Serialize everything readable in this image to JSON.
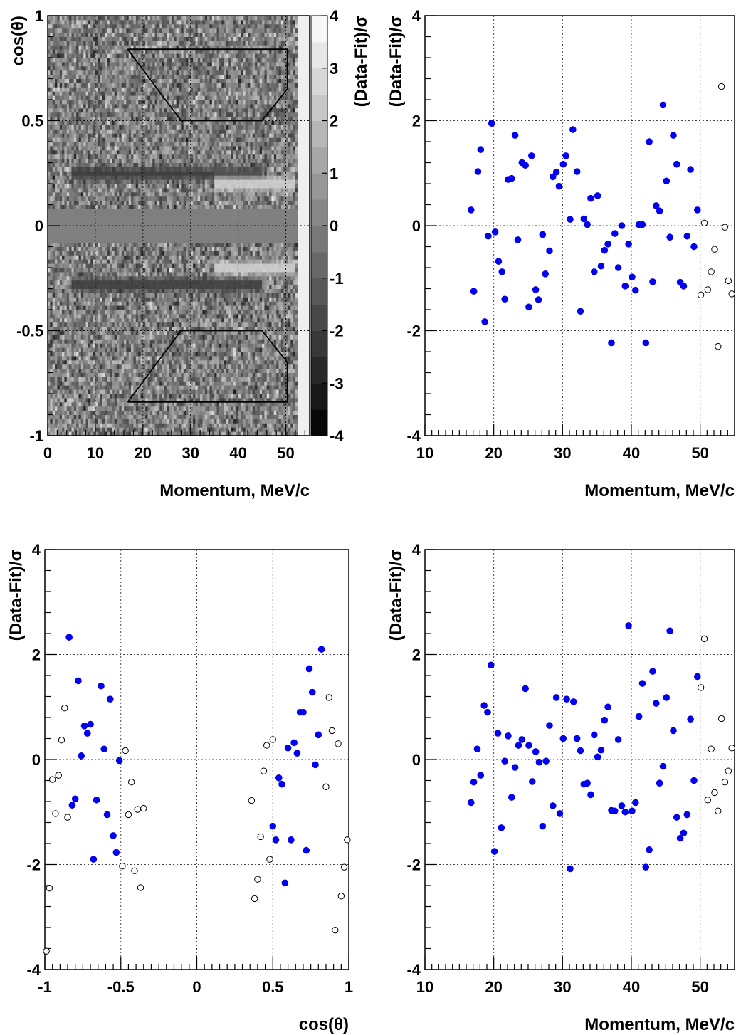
{
  "chart_data": [
    {
      "type": "heatmap",
      "xlabel": "Momentum, MeV/c",
      "ylabel": "cos(θ)",
      "colorbar_label": "(Data-Fit)/σ",
      "xlim": [
        0,
        55
      ],
      "ylim": [
        -1,
        1
      ],
      "zlim": [
        -4,
        4
      ],
      "x_ticks": [
        "0",
        "10",
        "20",
        "30",
        "40",
        "50"
      ],
      "y_ticks": [
        "-1",
        "-0.5",
        "0",
        "0.5",
        "1"
      ],
      "colorbar_ticks": [
        "-4",
        "-3",
        "-2",
        "-1",
        "0",
        "1",
        "2",
        "3",
        "4"
      ],
      "grid": true,
      "colormap": "grayscale",
      "features": [
        {
          "description": "dark negative-residual band",
          "x_range": [
            5,
            45
          ],
          "cos_center": 0.25,
          "value": -2
        },
        {
          "description": "bright positive-residual band",
          "x_range": [
            35,
            52
          ],
          "cos_center": 0.2,
          "value": 2.5
        },
        {
          "description": "dark negative-residual band",
          "x_range": [
            5,
            45
          ],
          "cos_center": -0.28,
          "value": -2
        },
        {
          "description": "bright positive-residual band",
          "x_range": [
            35,
            52
          ],
          "cos_center": -0.2,
          "value": 2.5
        },
        {
          "description": "empty central strip",
          "cos_range": [
            -0.08,
            0.08
          ],
          "value": 0
        }
      ],
      "regions": [
        [
          [
            16.8,
            0.84
          ],
          [
            50.3,
            0.84
          ],
          [
            50.3,
            0.65
          ],
          [
            45,
            0.5
          ],
          [
            28,
            0.5
          ],
          [
            16.8,
            0.84
          ]
        ],
        [
          [
            16.8,
            -0.84
          ],
          [
            50.3,
            -0.84
          ],
          [
            50.3,
            -0.65
          ],
          [
            45,
            -0.5
          ],
          [
            28,
            -0.5
          ],
          [
            16.8,
            -0.84
          ]
        ]
      ]
    },
    {
      "type": "scatter",
      "xlabel": "Momentum, MeV/c",
      "ylabel": "(Data-Fit)/σ",
      "xlim": [
        10,
        55
      ],
      "ylim": [
        -4,
        4
      ],
      "x_ticks": [
        "10",
        "20",
        "30",
        "40",
        "50"
      ],
      "y_ticks": [
        "-4",
        "-2",
        "0",
        "2",
        "4"
      ],
      "grid": true,
      "series": [
        {
          "marker": "filled",
          "color": "#0000ee",
          "points": [
            [
              16.7,
              0.3
            ],
            [
              17.1,
              -1.25
            ],
            [
              17.7,
              1.03
            ],
            [
              18.1,
              1.45
            ],
            [
              18.7,
              -1.83
            ],
            [
              19.2,
              -0.2
            ],
            [
              19.7,
              1.95
            ],
            [
              20.2,
              -0.12
            ],
            [
              20.7,
              -0.68
            ],
            [
              21.2,
              -0.88
            ],
            [
              21.6,
              -1.4
            ],
            [
              22.1,
              0.88
            ],
            [
              22.6,
              0.9
            ],
            [
              23.1,
              1.72
            ],
            [
              23.5,
              -0.27
            ],
            [
              24.1,
              1.2
            ],
            [
              24.6,
              1.15
            ],
            [
              25.1,
              -1.55
            ],
            [
              25.5,
              1.33
            ],
            [
              26.1,
              -1.22
            ],
            [
              26.5,
              -1.41
            ],
            [
              27.1,
              -0.17
            ],
            [
              27.5,
              -0.92
            ],
            [
              28.1,
              -0.48
            ],
            [
              28.6,
              0.93
            ],
            [
              29.1,
              1.02
            ],
            [
              29.5,
              0.75
            ],
            [
              30.1,
              1.17
            ],
            [
              30.5,
              1.33
            ],
            [
              31.1,
              0.12
            ],
            [
              31.5,
              1.83
            ],
            [
              32.1,
              1.03
            ],
            [
              32.6,
              -1.63
            ],
            [
              33.1,
              0.13
            ],
            [
              33.6,
              0.02
            ],
            [
              34.1,
              0.52
            ],
            [
              34.6,
              -0.88
            ],
            [
              35.1,
              0.57
            ],
            [
              35.6,
              -0.77
            ],
            [
              36.1,
              -0.47
            ],
            [
              36.6,
              -0.35
            ],
            [
              37.1,
              -2.23
            ],
            [
              37.6,
              -0.15
            ],
            [
              38.1,
              -0.8
            ],
            [
              38.6,
              0.0
            ],
            [
              39.1,
              -1.15
            ],
            [
              39.6,
              -0.35
            ],
            [
              40.1,
              -0.98
            ],
            [
              40.6,
              -1.23
            ],
            [
              41.1,
              0.02
            ],
            [
              41.6,
              0.02
            ],
            [
              42.1,
              -2.23
            ],
            [
              42.6,
              1.6
            ],
            [
              43.1,
              -1.07
            ],
            [
              43.6,
              0.38
            ],
            [
              44.1,
              0.28
            ],
            [
              44.6,
              2.3
            ],
            [
              45.1,
              0.85
            ],
            [
              45.6,
              -0.22
            ],
            [
              46.1,
              1.72
            ],
            [
              46.6,
              1.17
            ],
            [
              47.1,
              -1.08
            ],
            [
              47.6,
              -1.15
            ],
            [
              48.1,
              -0.2
            ],
            [
              48.6,
              1.07
            ],
            [
              49.1,
              -0.4
            ],
            [
              49.6,
              0.3
            ]
          ]
        },
        {
          "marker": "open",
          "color": "#000000",
          "points": [
            [
              50.1,
              -1.32
            ],
            [
              50.6,
              0.05
            ],
            [
              51.1,
              -1.22
            ],
            [
              51.6,
              -0.88
            ],
            [
              52.1,
              -0.45
            ],
            [
              52.6,
              -2.3
            ],
            [
              53.1,
              2.65
            ],
            [
              53.6,
              -0.03
            ],
            [
              54.1,
              -1.05
            ],
            [
              54.6,
              -1.3
            ]
          ]
        }
      ]
    },
    {
      "type": "scatter",
      "xlabel": "cos(θ)",
      "ylabel": "(Data-Fit)/σ",
      "xlim": [
        -1,
        1
      ],
      "ylim": [
        -4,
        4
      ],
      "x_ticks": [
        "-1",
        "-0.5",
        "0",
        "0.5",
        "1"
      ],
      "y_ticks": [
        "-4",
        "-2",
        "0",
        "2",
        "4"
      ],
      "grid": true,
      "series": [
        {
          "marker": "filled",
          "color": "#0000ee",
          "points": [
            [
              -0.84,
              2.33
            ],
            [
              -0.82,
              -0.87
            ],
            [
              -0.8,
              -0.75
            ],
            [
              -0.78,
              1.5
            ],
            [
              -0.76,
              0.07
            ],
            [
              -0.74,
              0.64
            ],
            [
              -0.72,
              0.5
            ],
            [
              -0.7,
              0.67
            ],
            [
              -0.68,
              -1.9
            ],
            [
              -0.66,
              -0.77
            ],
            [
              -0.63,
              1.4
            ],
            [
              -0.61,
              0.2
            ],
            [
              -0.59,
              -1.05
            ],
            [
              -0.57,
              1.15
            ],
            [
              -0.55,
              -1.45
            ],
            [
              -0.53,
              -1.77
            ],
            [
              -0.51,
              -0.02
            ],
            [
              0.5,
              -1.27
            ],
            [
              0.52,
              -1.53
            ],
            [
              0.54,
              -0.35
            ],
            [
              0.56,
              -0.47
            ],
            [
              0.58,
              -2.35
            ],
            [
              0.6,
              0.22
            ],
            [
              0.62,
              -1.53
            ],
            [
              0.64,
              0.32
            ],
            [
              0.66,
              0.12
            ],
            [
              0.68,
              0.9
            ],
            [
              0.7,
              0.9
            ],
            [
              0.72,
              -1.73
            ],
            [
              0.74,
              1.73
            ],
            [
              0.76,
              1.28
            ],
            [
              0.78,
              -0.1
            ],
            [
              0.8,
              0.47
            ],
            [
              0.82,
              2.1
            ]
          ]
        },
        {
          "marker": "open",
          "color": "#000000",
          "points": [
            [
              -0.99,
              -3.65
            ],
            [
              -0.97,
              -2.45
            ],
            [
              -0.95,
              -0.38
            ],
            [
              -0.93,
              -1.03
            ],
            [
              -0.91,
              -0.3
            ],
            [
              -0.89,
              0.37
            ],
            [
              -0.87,
              0.98
            ],
            [
              -0.85,
              -1.1
            ],
            [
              -0.49,
              -2.03
            ],
            [
              -0.47,
              0.17
            ],
            [
              -0.45,
              -1.05
            ],
            [
              -0.43,
              -0.43
            ],
            [
              -0.41,
              -2.12
            ],
            [
              -0.39,
              -0.95
            ],
            [
              -0.37,
              -2.44
            ],
            [
              -0.35,
              -0.93
            ],
            [
              0.36,
              -0.78
            ],
            [
              0.38,
              -2.65
            ],
            [
              0.4,
              -2.28
            ],
            [
              0.42,
              -1.47
            ],
            [
              0.44,
              -0.22
            ],
            [
              0.46,
              0.27
            ],
            [
              0.48,
              -1.9
            ],
            [
              0.5,
              0.38
            ],
            [
              0.85,
              -0.52
            ],
            [
              0.87,
              1.18
            ],
            [
              0.89,
              0.55
            ],
            [
              0.91,
              -3.25
            ],
            [
              0.93,
              0.3
            ],
            [
              0.95,
              -2.6
            ],
            [
              0.97,
              -2.05
            ],
            [
              0.99,
              -1.53
            ]
          ]
        }
      ]
    },
    {
      "type": "scatter",
      "xlabel": "Momentum, MeV/c",
      "ylabel": "(Data-Fit)/σ",
      "xlim": [
        10,
        55
      ],
      "ylim": [
        -4,
        4
      ],
      "x_ticks": [
        "10",
        "20",
        "30",
        "40",
        "50"
      ],
      "y_ticks": [
        "-4",
        "-2",
        "0",
        "2",
        "4"
      ],
      "grid": true,
      "series": [
        {
          "marker": "filled",
          "color": "#0000ee",
          "points": [
            [
              16.7,
              -0.82
            ],
            [
              17.1,
              -0.43
            ],
            [
              17.6,
              0.2
            ],
            [
              18.1,
              -0.3
            ],
            [
              18.6,
              1.03
            ],
            [
              19.1,
              0.9
            ],
            [
              19.6,
              1.8
            ],
            [
              20.1,
              -1.75
            ],
            [
              20.6,
              0.5
            ],
            [
              21.1,
              -1.3
            ],
            [
              21.6,
              -0.03
            ],
            [
              22.1,
              0.45
            ],
            [
              22.6,
              -0.72
            ],
            [
              23.1,
              -0.15
            ],
            [
              23.6,
              0.27
            ],
            [
              24.1,
              0.38
            ],
            [
              24.6,
              1.35
            ],
            [
              25.1,
              0.27
            ],
            [
              25.6,
              -0.42
            ],
            [
              26.1,
              0.15
            ],
            [
              26.6,
              -0.05
            ],
            [
              27.1,
              -1.27
            ],
            [
              27.6,
              -0.03
            ],
            [
              28.1,
              0.65
            ],
            [
              28.6,
              -0.88
            ],
            [
              29.1,
              1.18
            ],
            [
              29.6,
              -1.03
            ],
            [
              30.1,
              0.4
            ],
            [
              30.6,
              1.15
            ],
            [
              31.1,
              -2.08
            ],
            [
              31.6,
              1.1
            ],
            [
              32.1,
              0.4
            ],
            [
              32.6,
              0.17
            ],
            [
              33.1,
              -0.47
            ],
            [
              33.6,
              -0.45
            ],
            [
              34.1,
              -0.67
            ],
            [
              34.6,
              0.47
            ],
            [
              35.1,
              0.05
            ],
            [
              35.6,
              0.18
            ],
            [
              36.1,
              0.75
            ],
            [
              36.6,
              1.0
            ],
            [
              37.1,
              -0.97
            ],
            [
              37.6,
              -0.98
            ],
            [
              38.1,
              0.38
            ],
            [
              38.6,
              -0.88
            ],
            [
              39.1,
              -1.0
            ],
            [
              39.6,
              2.55
            ],
            [
              40.1,
              -0.98
            ],
            [
              40.6,
              -0.82
            ],
            [
              41.1,
              0.82
            ],
            [
              41.6,
              1.45
            ],
            [
              42.1,
              -2.05
            ],
            [
              42.6,
              -1.72
            ],
            [
              43.1,
              1.68
            ],
            [
              43.6,
              1.07
            ],
            [
              44.1,
              -0.45
            ],
            [
              44.6,
              -0.13
            ],
            [
              45.1,
              1.18
            ],
            [
              45.6,
              2.45
            ],
            [
              46.1,
              0.55
            ],
            [
              46.6,
              -1.1
            ],
            [
              47.1,
              -1.5
            ],
            [
              47.6,
              -1.4
            ],
            [
              48.1,
              -1.05
            ],
            [
              48.6,
              0.77
            ],
            [
              49.1,
              -0.4
            ],
            [
              49.6,
              1.58
            ]
          ]
        },
        {
          "marker": "open",
          "color": "#000000",
          "points": [
            [
              50.1,
              1.37
            ],
            [
              50.6,
              2.3
            ],
            [
              51.1,
              -0.77
            ],
            [
              51.6,
              0.2
            ],
            [
              52.1,
              -0.63
            ],
            [
              52.6,
              -0.98
            ],
            [
              53.1,
              0.78
            ],
            [
              53.6,
              -0.43
            ],
            [
              54.1,
              -0.22
            ],
            [
              54.6,
              0.22
            ]
          ]
        }
      ]
    }
  ]
}
